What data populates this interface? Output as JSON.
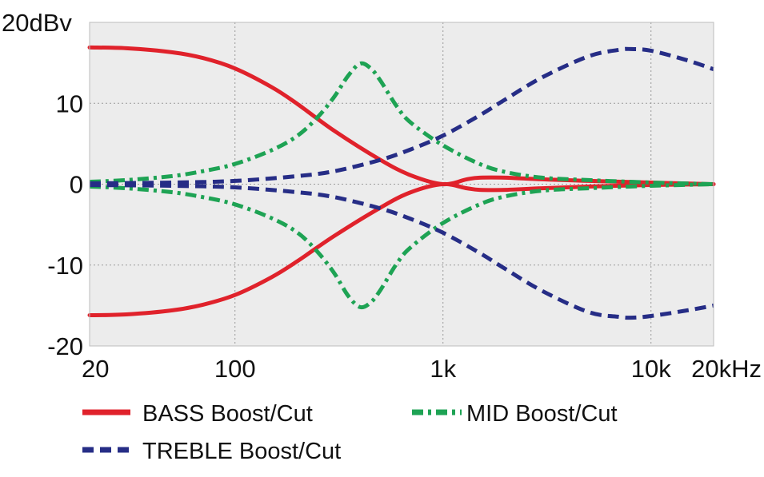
{
  "chart_data": {
    "type": "line",
    "title": "",
    "xlabel": "",
    "ylabel": "",
    "x_scale": "log",
    "xlim": [
      20,
      20000
    ],
    "ylim": [
      -20,
      20
    ],
    "grid": true,
    "background": "#ececec",
    "x_ticks": [
      {
        "value": 20,
        "label": "20"
      },
      {
        "value": 100,
        "label": "100"
      },
      {
        "value": 1000,
        "label": "1k"
      },
      {
        "value": 10000,
        "label": "10k"
      },
      {
        "value": 20000,
        "label": "20kHz"
      }
    ],
    "y_ticks": [
      {
        "value": 20,
        "label": "20dBv"
      },
      {
        "value": 10,
        "label": "10"
      },
      {
        "value": 0,
        "label": "0"
      },
      {
        "value": -10,
        "label": "-10"
      },
      {
        "value": -20,
        "label": "-20"
      }
    ],
    "legend_position": "bottom",
    "series": [
      {
        "name": "BASS Boost/Cut",
        "color": "#e0222b",
        "style": "solid",
        "curves": [
          {
            "x": [
              20,
              30,
              50,
              70,
              100,
              150,
              200,
              300,
              500,
              700,
              1000,
              1300,
              1500,
              2000,
              3000,
              5000,
              10000,
              20000
            ],
            "y": [
              16.9,
              16.8,
              16.3,
              15.6,
              14.3,
              12.0,
              9.9,
              6.6,
              3.0,
              1.1,
              0.0,
              0.6,
              0.8,
              0.8,
              0.6,
              0.4,
              0.2,
              0.0
            ]
          },
          {
            "x": [
              20,
              30,
              50,
              70,
              100,
              150,
              200,
              300,
              500,
              700,
              1000,
              1300,
              1500,
              2000,
              3000,
              5000,
              10000,
              20000
            ],
            "y": [
              -16.2,
              -16.1,
              -15.6,
              -14.9,
              -13.7,
              -11.5,
              -9.5,
              -6.4,
              -2.9,
              -1.0,
              0.0,
              -0.5,
              -0.7,
              -0.7,
              -0.5,
              -0.3,
              -0.1,
              0.0
            ]
          }
        ]
      },
      {
        "name": "MID Boost/Cut",
        "color": "#1ea354",
        "style": "dashdot",
        "curves": [
          {
            "x": [
              20,
              30,
              50,
              70,
              100,
              150,
              200,
              250,
              300,
              350,
              400,
              450,
              500,
              600,
              700,
              1000,
              1500,
              2000,
              3000,
              5000,
              10000,
              20000
            ],
            "y": [
              0.3,
              0.5,
              1.0,
              1.6,
              2.5,
              4.2,
              6.0,
              8.3,
              10.8,
              13.4,
              14.9,
              14.3,
              12.8,
              9.6,
              7.6,
              4.8,
              2.5,
              1.5,
              0.8,
              0.5,
              0.2,
              0.0
            ]
          },
          {
            "x": [
              20,
              30,
              50,
              70,
              100,
              150,
              200,
              250,
              300,
              350,
              400,
              450,
              500,
              600,
              700,
              1000,
              1500,
              2000,
              3000,
              5000,
              10000,
              20000
            ],
            "y": [
              -0.3,
              -0.5,
              -1.0,
              -1.6,
              -2.5,
              -4.2,
              -6.0,
              -8.4,
              -11.0,
              -13.8,
              -15.2,
              -14.6,
              -13.1,
              -9.8,
              -7.8,
              -4.8,
              -2.5,
              -1.5,
              -0.8,
              -0.5,
              -0.2,
              0.0
            ]
          }
        ]
      },
      {
        "name": "TREBLE Boost/Cut",
        "color": "#262d86",
        "style": "dashed",
        "curves": [
          {
            "x": [
              20,
              50,
              100,
              200,
              300,
              500,
              700,
              1000,
              1500,
              2000,
              3000,
              5000,
              7000,
              8000,
              10000,
              15000,
              20000
            ],
            "y": [
              0.1,
              0.2,
              0.4,
              1.0,
              1.6,
              3.0,
              4.3,
              6.0,
              8.5,
              10.5,
              13.2,
              15.8,
              16.6,
              16.7,
              16.5,
              15.3,
              14.2
            ]
          },
          {
            "x": [
              20,
              50,
              100,
              200,
              300,
              500,
              700,
              1000,
              1500,
              2000,
              3000,
              5000,
              7000,
              8000,
              10000,
              15000,
              20000
            ],
            "y": [
              -0.1,
              -0.2,
              -0.4,
              -1.0,
              -1.6,
              -3.0,
              -4.3,
              -6.0,
              -8.5,
              -10.5,
              -13.2,
              -15.8,
              -16.4,
              -16.5,
              -16.3,
              -15.6,
              -15.0
            ]
          }
        ]
      }
    ]
  },
  "legend": {
    "bass_label": "BASS Boost/Cut",
    "mid_label": "MID Boost/Cut",
    "treble_label": "TREBLE Boost/Cut"
  }
}
